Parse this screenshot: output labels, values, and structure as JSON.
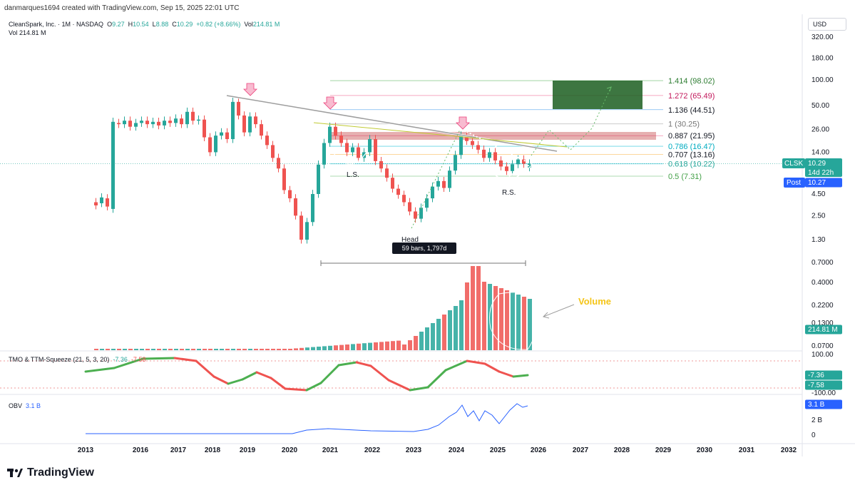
{
  "header": {
    "credit": "danmarques1694 created with TradingView.com, Sep 15, 2025 22:01 UTC"
  },
  "legend": {
    "title": "CleanSpark, Inc. · 1M · NASDAQ",
    "o_label": "O",
    "o": "9.27",
    "h_label": "H",
    "h": "10.54",
    "l_label": "L",
    "l": "8.88",
    "c_label": "C",
    "c": "10.29",
    "change": "+0.82 (+8.66%)",
    "vol_label": "Vol",
    "vol": "214.81 M",
    "vol2_label": "Vol",
    "vol2": "214.81 M"
  },
  "currency": "USD",
  "brand": "TradingView",
  "colors": {
    "up": "#26a69a",
    "down": "#ef5350",
    "fib_green": "#4caf50",
    "fib_cyan": "#00bcd4",
    "obv": "#2962ff",
    "annot": "#f5c518",
    "target_box": "#1b5e20"
  },
  "chart_data": [
    {
      "type": "candlestick",
      "name": "price",
      "scale": "log",
      "ylim": [
        0.7,
        320
      ],
      "ticks": [
        "320.00",
        "180.00",
        "100.00",
        "50.00",
        "26.00",
        "14.00",
        "4.50",
        "2.50",
        "1.30",
        "0.7000"
      ],
      "x_ticks": [
        "2013",
        "2016",
        "2017",
        "2018",
        "2019",
        "2020",
        "2021",
        "2022",
        "2023",
        "2024",
        "2025",
        "2026",
        "2027",
        "2028",
        "2029",
        "2030",
        "2031",
        "2032"
      ],
      "last_price": {
        "symbol": "CLSK",
        "value": "10.29",
        "countdown": "14d 22h"
      },
      "post_price": {
        "label": "Post",
        "value": "10.27"
      },
      "fib_levels": [
        {
          "label": "1.414 (98.02)",
          "value": 98.02
        },
        {
          "label": "1.272 (65.49)",
          "value": 65.49
        },
        {
          "label": "1.136 (44.51)",
          "value": 44.51
        },
        {
          "label": "1 (30.25)",
          "value": 30.25
        },
        {
          "label": "0.887 (21.95)",
          "value": 21.95
        },
        {
          "label": "0.786 (16.47)",
          "value": 16.47
        },
        {
          "label": "0.707 (13.16)",
          "value": 13.16
        },
        {
          "label": "0.618 (10.22)",
          "value": 10.22
        },
        {
          "label": "0.5 (7.31)",
          "value": 7.31
        }
      ],
      "annotations": {
        "left_shoulder": "L.S.",
        "head": "Head",
        "right_shoulder": "R.S.",
        "range": "59 bars, 1,797d"
      }
    },
    {
      "type": "bar",
      "name": "volume",
      "ticks": [
        "0.4000",
        "0.2200",
        "0.1300",
        "0.0700"
      ],
      "last_value": "214.81 M",
      "annotation": "Volume"
    },
    {
      "type": "line",
      "name": "TMO & TTM-Squeeze",
      "title": "TMO & TTM-Squeeze (21, 5, 3, 20)",
      "legend_values": [
        "-7.36",
        "-7.58"
      ],
      "ticks": [
        "100.00",
        "-100.00"
      ],
      "badges": [
        "-7.36",
        "-7.58"
      ]
    },
    {
      "type": "line",
      "name": "OBV",
      "title": "OBV",
      "legend_value": "3.1 B",
      "ticks": [
        "2 B",
        "0"
      ],
      "badge": "3.1 B"
    }
  ]
}
